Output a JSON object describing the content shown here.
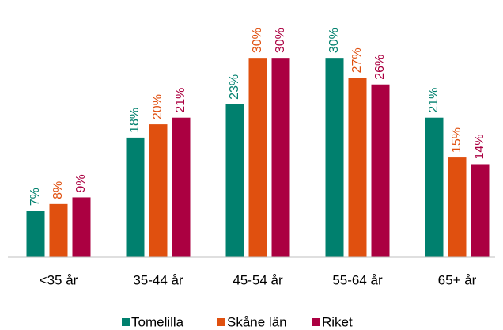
{
  "chart_data": {
    "type": "bar",
    "categories": [
      "<35 år",
      "35-44 år",
      "45-54 år",
      "55-64 år",
      "65+ år"
    ],
    "series": [
      {
        "name": "Tomelilla",
        "color": "#00806e",
        "values": [
          7,
          18,
          23,
          30,
          21
        ],
        "value_labels": [
          "7%",
          "18%",
          "23%",
          "30%",
          "21%"
        ]
      },
      {
        "name": "Skåne län",
        "color": "#e0500f",
        "values": [
          8,
          20,
          30,
          27,
          15
        ],
        "value_labels": [
          "8%",
          "20%",
          "30%",
          "27%",
          "15%"
        ]
      },
      {
        "name": "Riket",
        "color": "#ab0041",
        "values": [
          9,
          21,
          30,
          26,
          14
        ],
        "value_labels": [
          "9%",
          "21%",
          "30%",
          "26%",
          "14%"
        ]
      }
    ],
    "ylim": [
      0,
      38
    ],
    "legend": "bottom"
  }
}
